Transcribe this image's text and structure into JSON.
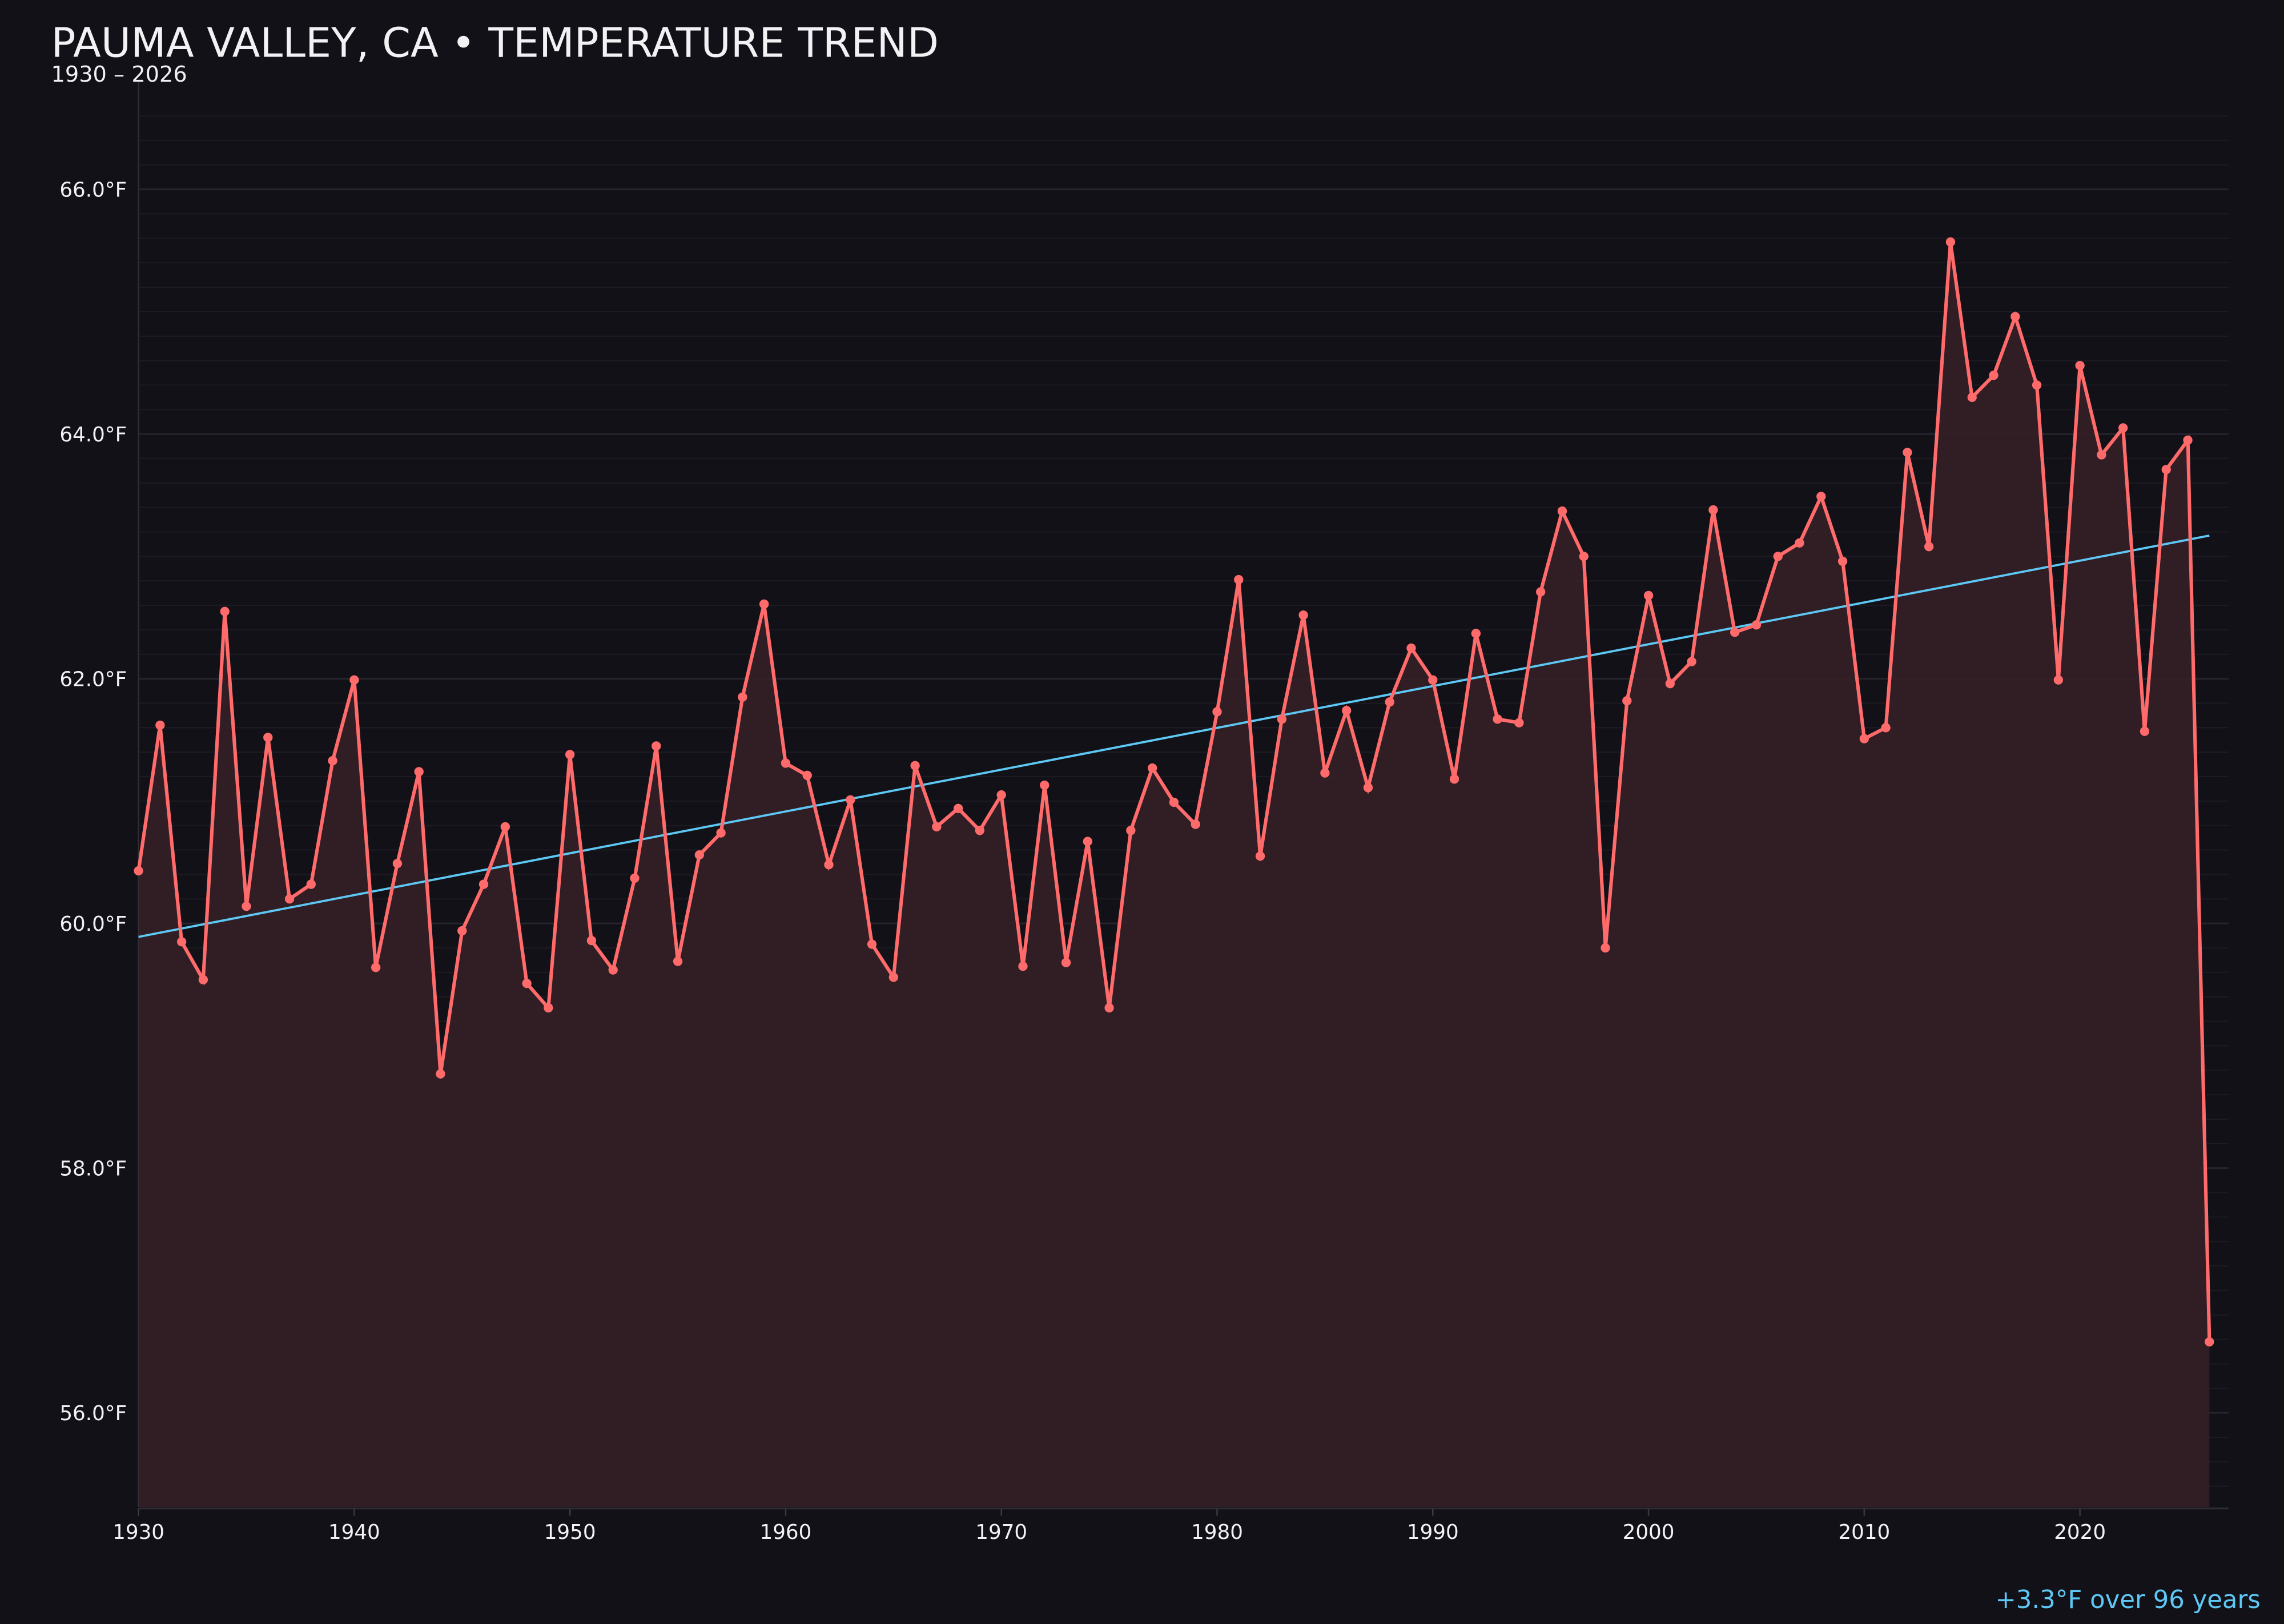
{
  "chart_data": {
    "type": "line",
    "title": "PAUMA VALLEY, CA • TEMPERATURE TREND",
    "subtitle": "1930 – 2026",
    "annotation": "+3.3°F over 96 years",
    "xlabel": "",
    "ylabel": "",
    "xlim": [
      1930,
      2027
    ],
    "ylim": [
      55.23,
      66.9
    ],
    "x_ticks": [
      1930,
      1940,
      1950,
      1960,
      1970,
      1980,
      1990,
      2000,
      2010,
      2020
    ],
    "y_ticks": [
      56.0,
      58.0,
      60.0,
      62.0,
      64.0,
      66.0
    ],
    "y_tick_labels": [
      "56.0°F",
      "58.0°F",
      "60.0°F",
      "62.0°F",
      "64.0°F",
      "66.0°F"
    ],
    "grid": true,
    "colors": {
      "background": "#121118",
      "series": "#ff6b6b",
      "fill": "#351f26",
      "trend": "#5ec8f5",
      "text": "#f2f2f5",
      "annotation": "#5ec8f5"
    },
    "x": [
      1930,
      1931,
      1932,
      1933,
      1934,
      1935,
      1936,
      1937,
      1938,
      1939,
      1940,
      1941,
      1942,
      1943,
      1944,
      1945,
      1946,
      1947,
      1948,
      1949,
      1950,
      1951,
      1952,
      1953,
      1954,
      1955,
      1956,
      1957,
      1958,
      1959,
      1960,
      1961,
      1962,
      1963,
      1964,
      1965,
      1966,
      1967,
      1968,
      1969,
      1970,
      1971,
      1972,
      1973,
      1974,
      1975,
      1976,
      1977,
      1978,
      1979,
      1980,
      1981,
      1982,
      1983,
      1984,
      1985,
      1986,
      1987,
      1988,
      1989,
      1990,
      1991,
      1992,
      1993,
      1994,
      1995,
      1996,
      1997,
      1998,
      1999,
      2000,
      2001,
      2002,
      2003,
      2004,
      2005,
      2006,
      2007,
      2008,
      2009,
      2010,
      2011,
      2012,
      2013,
      2014,
      2015,
      2016,
      2017,
      2018,
      2019,
      2020,
      2021,
      2022,
      2023,
      2024,
      2025,
      2026
    ],
    "series": [
      {
        "values": [
          60.43,
          61.62,
          59.85,
          59.54,
          62.55,
          60.14,
          61.52,
          60.2,
          60.32,
          61.33,
          61.99,
          59.64,
          60.49,
          61.24,
          58.77,
          59.94,
          60.32,
          60.79,
          59.51,
          59.31,
          61.38,
          59.86,
          59.62,
          60.37,
          61.45,
          59.69,
          60.56,
          60.74,
          61.85,
          62.61,
          61.31,
          61.21,
          60.48,
          61.01,
          59.83,
          59.56,
          61.29,
          60.79,
          60.94,
          60.76,
          61.05,
          59.65,
          61.13,
          59.68,
          60.67,
          59.31,
          60.76,
          61.27,
          60.99,
          60.81,
          61.73,
          62.81,
          60.55,
          61.67,
          62.52,
          61.23,
          61.74,
          61.11,
          61.81,
          62.25,
          61.99,
          61.18,
          62.37,
          61.67,
          61.64,
          62.71,
          63.37,
          63.0,
          59.8,
          61.82,
          62.68,
          61.96,
          62.14,
          63.38,
          62.38,
          62.44,
          63.0,
          63.11,
          63.49,
          62.96,
          61.51,
          61.6,
          63.85,
          63.08,
          65.57,
          64.3,
          64.48,
          64.96,
          64.4,
          61.99,
          64.56,
          63.83,
          64.05,
          61.57,
          63.71,
          63.95,
          56.58
        ]
      }
    ],
    "trend": {
      "x": [
        1930,
        2026
      ],
      "y": [
        59.89,
        63.17
      ]
    }
  }
}
